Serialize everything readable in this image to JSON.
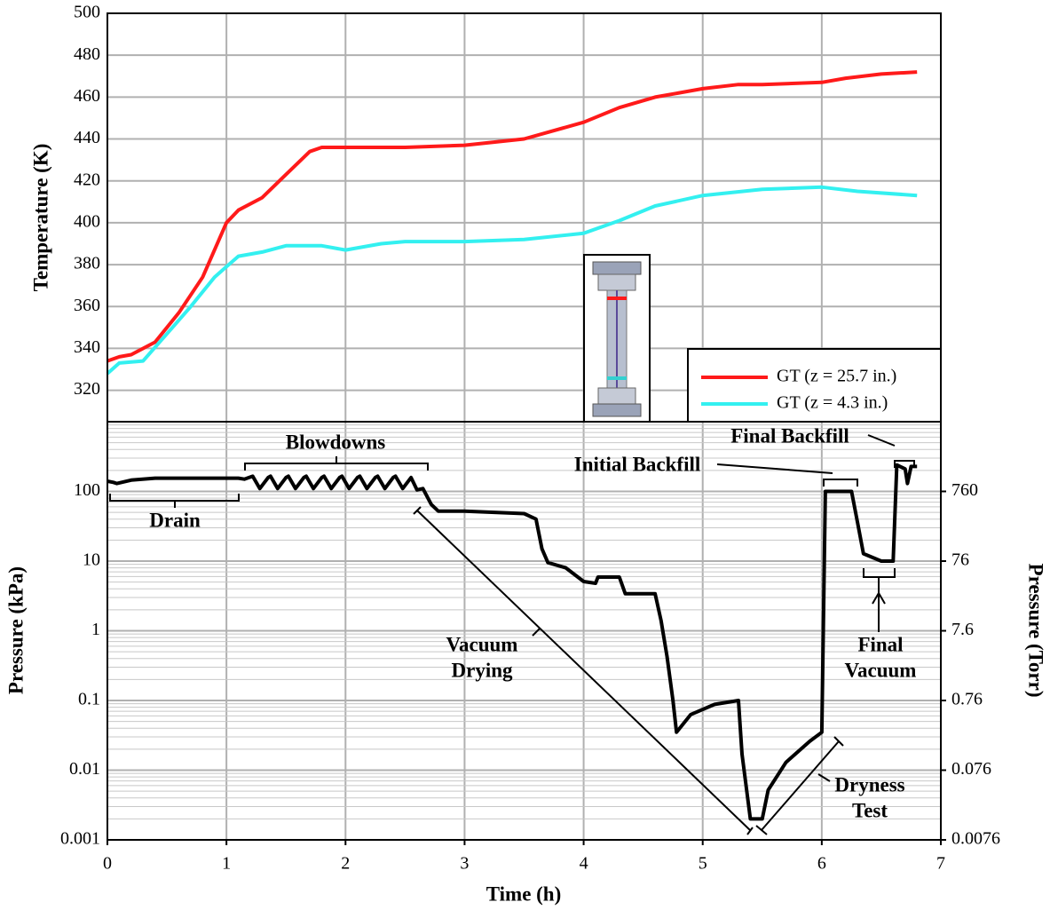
{
  "chart_data": [
    {
      "type": "line",
      "ylabel": "Temperature (K)",
      "xlim": [
        0,
        7
      ],
      "xticks": [
        0,
        1,
        2,
        3,
        4,
        5,
        6,
        7
      ],
      "ylim": [
        305,
        500
      ],
      "yticks": [
        320,
        340,
        360,
        380,
        400,
        420,
        440,
        460,
        480,
        500
      ],
      "grid": true,
      "series": [
        {
          "name": "GT (z = 25.7 in.)",
          "color": "#ff1a1a",
          "x": [
            0,
            0.1,
            0.2,
            0.4,
            0.6,
            0.8,
            1.0,
            1.1,
            1.3,
            1.5,
            1.7,
            1.8,
            2.0,
            2.5,
            3.0,
            3.5,
            4.0,
            4.3,
            4.6,
            5.0,
            5.3,
            5.5,
            6.0,
            6.2,
            6.5,
            6.8
          ],
          "values": [
            334,
            336,
            337,
            343,
            357,
            374,
            400,
            406,
            412,
            423,
            434,
            436,
            436,
            436,
            437,
            440,
            448,
            455,
            460,
            464,
            466,
            466,
            467,
            469,
            471,
            472
          ]
        },
        {
          "name": "GT (z = 4.3 in.)",
          "color": "#33f0f0",
          "x": [
            0,
            0.1,
            0.3,
            0.5,
            0.7,
            0.9,
            1.0,
            1.1,
            1.3,
            1.5,
            1.8,
            2.0,
            2.3,
            2.5,
            3.0,
            3.5,
            4.0,
            4.3,
            4.6,
            5.0,
            5.5,
            6.0,
            6.3,
            6.8
          ],
          "values": [
            328,
            333,
            334,
            347,
            360,
            374,
            379,
            384,
            386,
            389,
            389,
            387,
            390,
            391,
            391,
            392,
            395,
            401,
            408,
            413,
            416,
            417,
            415,
            413
          ]
        }
      ]
    },
    {
      "type": "line",
      "log_y": true,
      "color": "#000000",
      "xlabel": "Time (h)",
      "ylabel": "Pressure (kPa)",
      "y2label": "Pressure (Torr)",
      "xlim": [
        0,
        7
      ],
      "xticks": [
        0,
        1,
        2,
        3,
        4,
        5,
        6,
        7
      ],
      "ylim": [
        0.001,
        1000
      ],
      "yticks": [
        0.001,
        0.01,
        0.1,
        1,
        10,
        100
      ],
      "y2lim": [
        0.0076,
        7600
      ],
      "y2ticks": [
        0.0076,
        0.076,
        0.76,
        7.6,
        76,
        760
      ],
      "grid": true,
      "x": [
        0,
        0.05,
        0.08,
        0.2,
        0.4,
        1.1,
        1.15,
        1.22,
        1.28,
        1.35,
        1.37,
        1.43,
        1.5,
        1.52,
        1.58,
        1.65,
        1.67,
        1.73,
        1.8,
        1.82,
        1.88,
        1.95,
        1.97,
        2.03,
        2.1,
        2.12,
        2.18,
        2.25,
        2.27,
        2.33,
        2.4,
        2.42,
        2.48,
        2.55,
        2.6,
        2.65,
        2.72,
        2.78,
        3.0,
        3.5,
        3.6,
        3.65,
        3.7,
        3.85,
        4.0,
        4.1,
        4.12,
        4.3,
        4.35,
        4.6,
        4.65,
        4.7,
        4.75,
        4.78,
        4.9,
        5.1,
        5.3,
        5.33,
        5.4,
        5.5,
        5.55,
        5.7,
        5.9,
        6.0,
        6.03,
        6.25,
        6.3,
        6.35,
        6.5,
        6.6,
        6.63,
        6.7,
        6.72,
        6.75,
        6.8
      ],
      "values": [
        140,
        135,
        130,
        145,
        155,
        155,
        150,
        165,
        110,
        158,
        165,
        110,
        158,
        165,
        110,
        158,
        165,
        110,
        158,
        165,
        110,
        158,
        165,
        110,
        158,
        165,
        110,
        158,
        165,
        110,
        158,
        165,
        110,
        158,
        105,
        110,
        65,
        52,
        52,
        48,
        40,
        15,
        9.5,
        8,
        5.1,
        4.8,
        5.9,
        5.9,
        3.4,
        3.4,
        1.4,
        0.43,
        0.1,
        0.035,
        0.063,
        0.088,
        0.1,
        0.017,
        0.002,
        0.002,
        0.0052,
        0.013,
        0.026,
        0.035,
        100,
        100,
        36,
        12.8,
        10,
        10,
        240,
        210,
        130,
        228,
        228
      ],
      "annotations": [
        [
          "Drain"
        ],
        [
          "Blowdowns"
        ],
        [
          "Vacuum",
          "Drying"
        ],
        [
          "Dryness",
          "Test"
        ],
        [
          "Initial Backfill"
        ],
        [
          "Final Backfill"
        ],
        [
          "Final",
          "Vacuum"
        ]
      ]
    }
  ]
}
